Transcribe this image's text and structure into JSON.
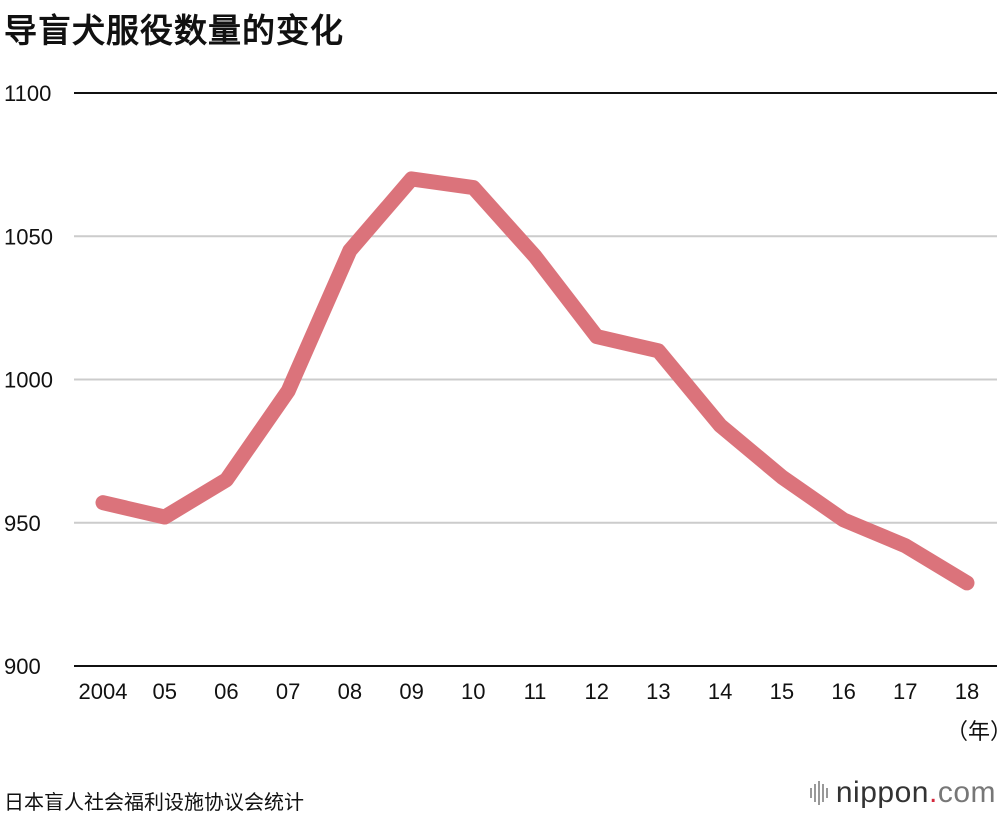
{
  "title": "导盲犬服役数量的变化",
  "unit": "（年）",
  "source": "日本盲人社会福利设施协议会统计",
  "logo": {
    "name": "nippon",
    "dot": ".",
    "domain": "com"
  },
  "colors": {
    "line": "#db737b",
    "grid": "#cccccc",
    "axis": "#111111"
  },
  "chart_data": {
    "type": "line",
    "title": "导盲犬服役数量的变化",
    "xlabel": "（年）",
    "ylabel": "",
    "categories": [
      "2004",
      "05",
      "06",
      "07",
      "08",
      "09",
      "10",
      "11",
      "12",
      "13",
      "14",
      "15",
      "16",
      "17",
      "18"
    ],
    "values": [
      957,
      952,
      965,
      996,
      1045,
      1070,
      1067,
      1043,
      1015,
      1010,
      984,
      966,
      951,
      942,
      929
    ],
    "ylim": [
      900,
      1100
    ],
    "yticks": [
      900,
      950,
      1000,
      1050,
      1100
    ],
    "grid": true,
    "legend": "none"
  }
}
